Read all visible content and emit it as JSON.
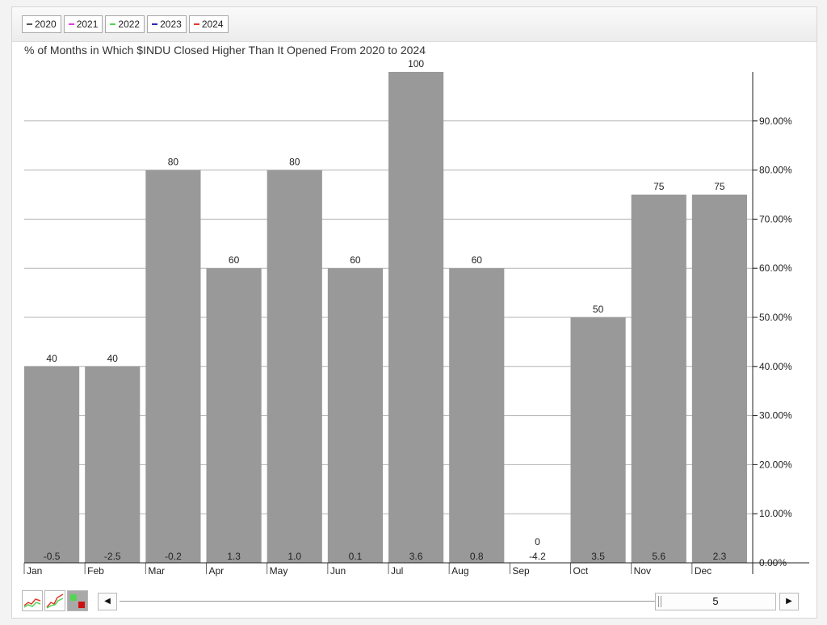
{
  "legend": [
    {
      "label": "2020",
      "color": "#555555"
    },
    {
      "label": "2021",
      "color": "#e23be2"
    },
    {
      "label": "2022",
      "color": "#52d652"
    },
    {
      "label": "2023",
      "color": "#2a2ab8"
    },
    {
      "label": "2024",
      "color": "#e03a2c"
    }
  ],
  "colors": {
    "bar": "#999999",
    "grid": "#b3b3b3",
    "axis": "#222222"
  },
  "controls": {
    "years_value": "5",
    "left_arrow": "◀",
    "right_arrow": "▶"
  },
  "chart_data": {
    "type": "bar",
    "title": "% of Months in Which $INDU Closed Higher Than It Opened From 2020 to 2024",
    "categories": [
      "Jan",
      "Feb",
      "Mar",
      "Apr",
      "May",
      "Jun",
      "Jul",
      "Aug",
      "Sep",
      "Oct",
      "Nov",
      "Dec"
    ],
    "values": [
      40,
      40,
      80,
      60,
      80,
      60,
      100,
      60,
      0,
      50,
      75,
      75
    ],
    "value_labels": [
      "40",
      "40",
      "80",
      "60",
      "80",
      "60",
      "100",
      "60",
      "0",
      "50",
      "75",
      "75"
    ],
    "secondary_values": [
      -0.5,
      -2.5,
      -0.2,
      1.3,
      1.0,
      0.1,
      3.6,
      0.8,
      -4.2,
      3.5,
      5.6,
      2.3
    ],
    "secondary_labels": [
      "-0.5",
      "-2.5",
      "-0.2",
      "1.3",
      "1.0",
      "0.1",
      "3.6",
      "0.8",
      "-4.2",
      "3.5",
      "5.6",
      "2.3"
    ],
    "ylim": [
      0,
      100
    ],
    "y_ticks": [
      0,
      10,
      20,
      30,
      40,
      50,
      60,
      70,
      80,
      90
    ],
    "y_tick_labels": [
      "0.00%",
      "10.00%",
      "20.00%",
      "30.00%",
      "40.00%",
      "50.00%",
      "60.00%",
      "70.00%",
      "80.00%",
      "90.00%"
    ],
    "y_axis_position": "right",
    "grid": true
  }
}
